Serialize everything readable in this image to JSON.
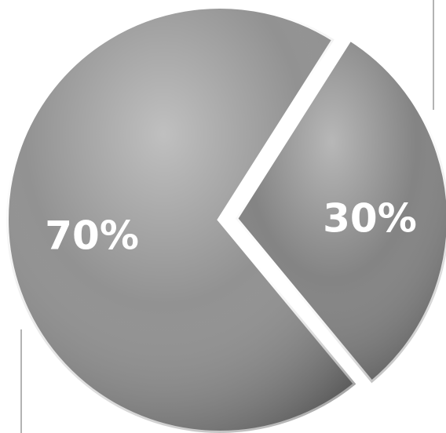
{
  "chart_data": {
    "type": "pie",
    "values": [
      70,
      30
    ],
    "value_labels": [
      "70%",
      "30%"
    ],
    "colors": [
      "#8c8c8c",
      "#7d7d7d"
    ]
  }
}
